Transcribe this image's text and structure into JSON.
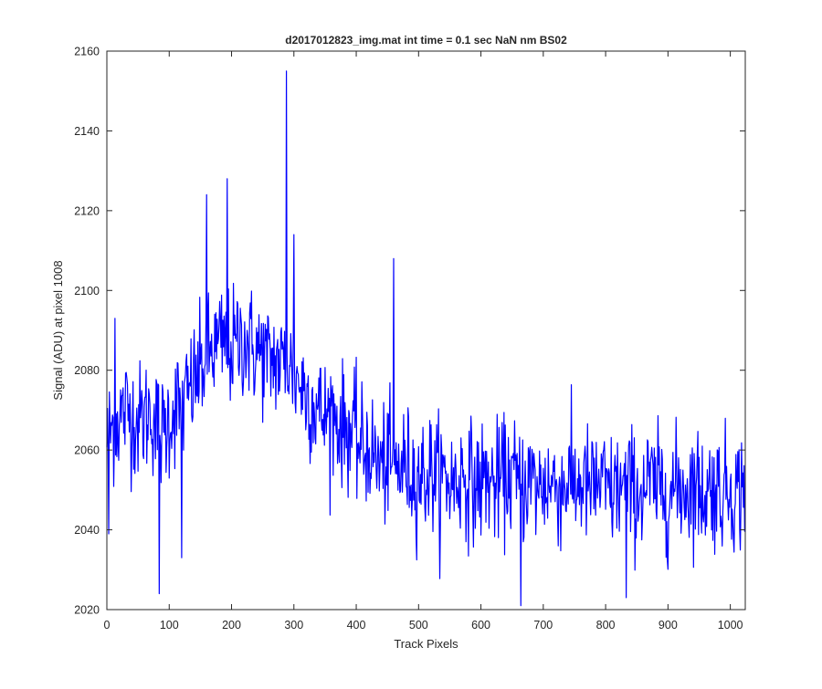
{
  "chart_data": {
    "type": "line",
    "title": "d2017012823_img.mat int time = 0.1 sec  NaN nm BS02",
    "xlabel": "Track Pixels",
    "ylabel": "Signal (ADU) at pixel 1008",
    "xlim": [
      0,
      1024
    ],
    "ylim": [
      2020,
      2160
    ],
    "xticks": [
      0,
      100,
      200,
      300,
      400,
      500,
      600,
      700,
      800,
      900,
      1000
    ],
    "yticks": [
      2020,
      2040,
      2060,
      2080,
      2100,
      2120,
      2140,
      2160
    ],
    "grid": false,
    "legend": "none",
    "line_color": "#0000ff",
    "series": [
      {
        "x": [
          0,
          10,
          20,
          30,
          40,
          50,
          60,
          70,
          80,
          90,
          100,
          110,
          120,
          130,
          140,
          150,
          160,
          170,
          180,
          190,
          200,
          210,
          220,
          230,
          240,
          250,
          260,
          270,
          280,
          290,
          300,
          310,
          320,
          330,
          340,
          350,
          360,
          370,
          380,
          390,
          400,
          410,
          420,
          430,
          440,
          450,
          460,
          470,
          480,
          490,
          500,
          510,
          520,
          530,
          540,
          550,
          560,
          570,
          580,
          590,
          600,
          610,
          620,
          630,
          640,
          650,
          660,
          670,
          680,
          690,
          700,
          710,
          720,
          730,
          740,
          750,
          760,
          770,
          780,
          790,
          800,
          810,
          820,
          830,
          840,
          850,
          860,
          870,
          880,
          890,
          900,
          910,
          920,
          930,
          940,
          950,
          960,
          970,
          980,
          990,
          1000,
          1010,
          1020,
          1024
        ],
        "y": [
          2063,
          2066,
          2068,
          2070,
          2069,
          2067,
          2068,
          2070,
          2066,
          2064,
          2068,
          2071,
          2070,
          2074,
          2077,
          2080,
          2083,
          2085,
          2086,
          2087,
          2085,
          2087,
          2088,
          2086,
          2085,
          2084,
          2082,
          2083,
          2081,
          2083,
          2079,
          2077,
          2074,
          2072,
          2070,
          2068,
          2070,
          2067,
          2066,
          2065,
          2063,
          2060,
          2061,
          2058,
          2056,
          2057,
          2055,
          2056,
          2056,
          2054,
          2054,
          2053,
          2055,
          2053,
          2053,
          2052,
          2052,
          2054,
          2053,
          2051,
          2052,
          2053,
          2051,
          2052,
          2053,
          2054,
          2051,
          2052,
          2053,
          2050,
          2052,
          2051,
          2052,
          2050,
          2053,
          2051,
          2052,
          2051,
          2050,
          2052,
          2050,
          2049,
          2051,
          2050,
          2051,
          2049,
          2050,
          2052,
          2050,
          2051,
          2049,
          2050,
          2051,
          2050,
          2052,
          2050,
          2049,
          2051,
          2050,
          2050,
          2051,
          2049,
          2051,
          2050
        ],
        "noise_amplitude": 12,
        "spikes": [
          [
            3,
            2039
          ],
          [
            13,
            2093
          ],
          [
            84,
            2024
          ],
          [
            120,
            2033
          ],
          [
            160,
            2124
          ],
          [
            193,
            2128
          ],
          [
            288,
            2155
          ],
          [
            300,
            2114
          ],
          [
            460,
            2108
          ],
          [
            664,
            2021
          ],
          [
            833,
            2023
          ]
        ]
      }
    ]
  }
}
